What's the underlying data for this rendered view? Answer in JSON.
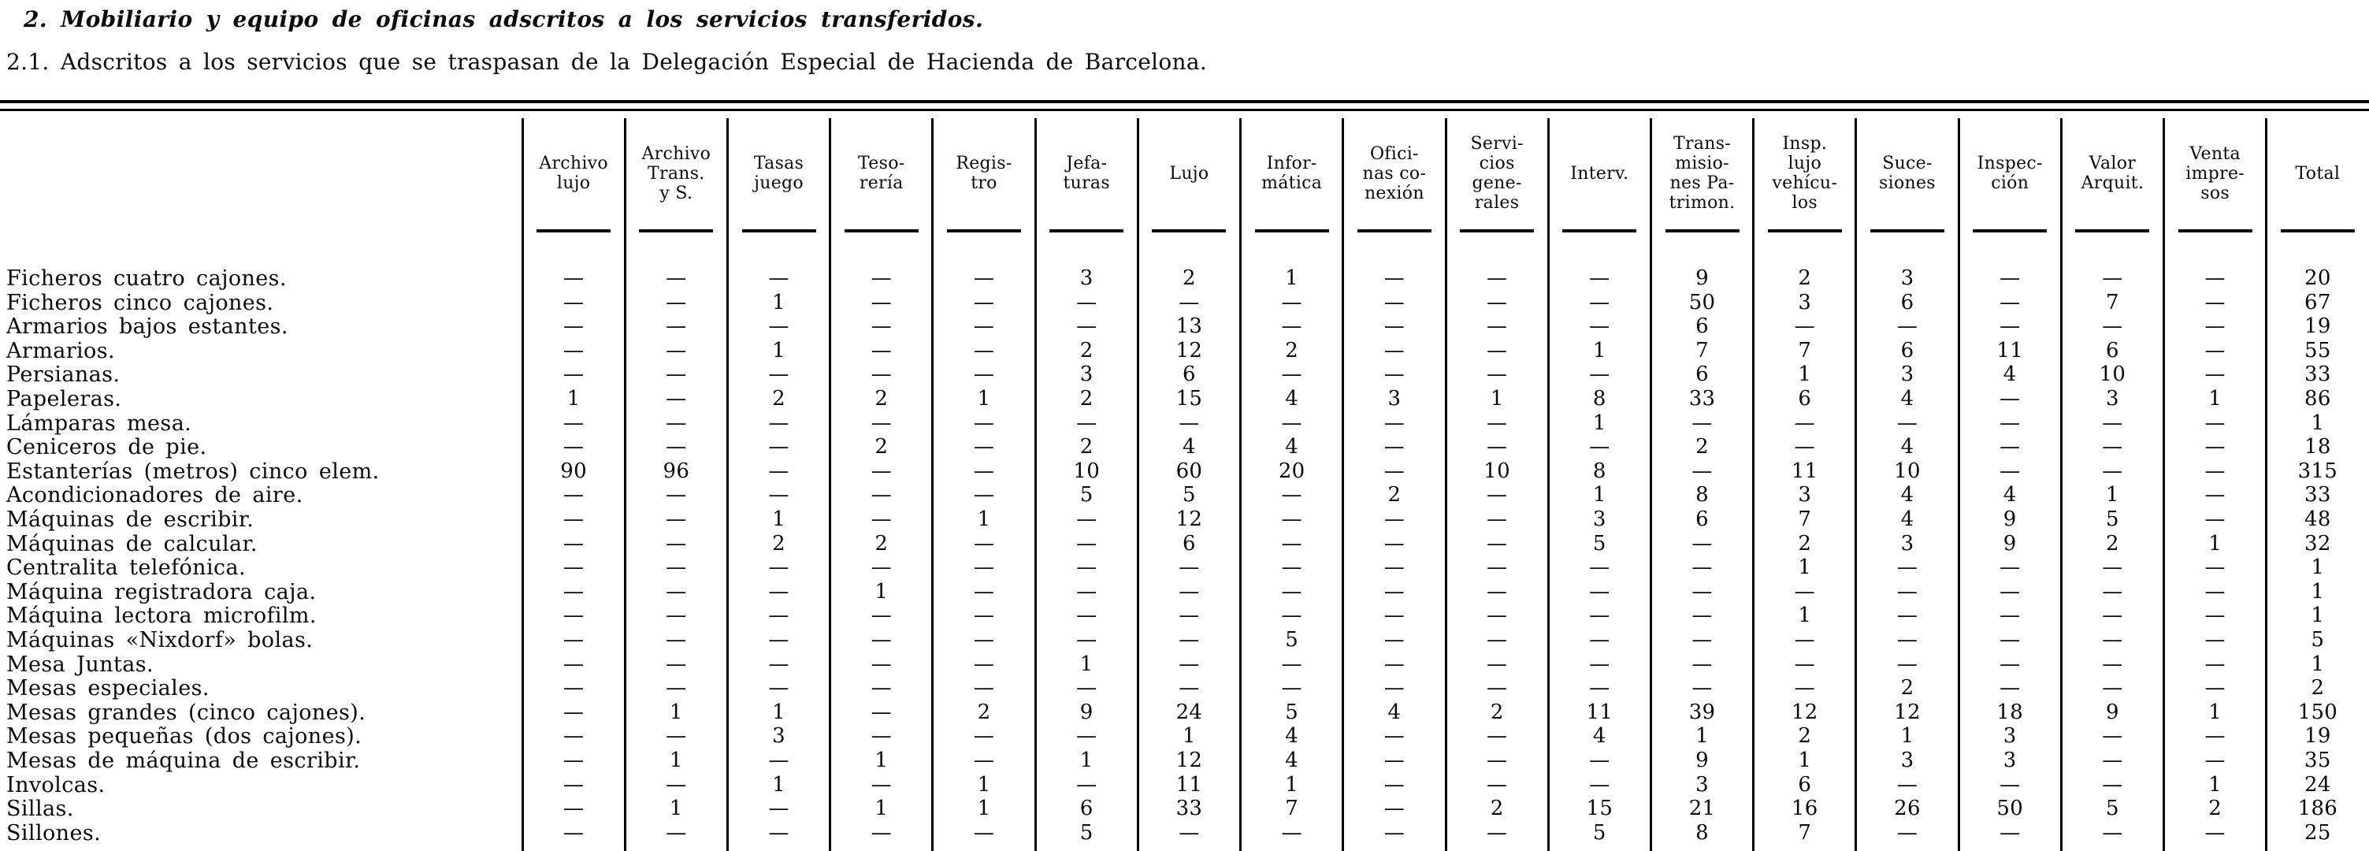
{
  "page": {
    "heading": "2.  Mobiliario y equipo de oficinas adscritos a los servicios transferidos.",
    "subheading": "2.1.  Adscritos a los servicios que se traspasan de la Delegación Especial de Hacienda de Barcelona."
  },
  "table": {
    "dash": "—",
    "columns": [
      {
        "id": "archivo-lujo",
        "label": "Archivo lujo",
        "lines": [
          "Archivo",
          "lujo"
        ]
      },
      {
        "id": "archivo-trans-y-s",
        "label": "Archivo Trans. y S.",
        "lines": [
          "Archivo",
          "Trans.",
          "y S."
        ]
      },
      {
        "id": "tasas-juego",
        "label": "Tasas juego",
        "lines": [
          "Tasas",
          "juego"
        ]
      },
      {
        "id": "tesoreria",
        "label": "Tesorería",
        "lines": [
          "Teso-",
          "rería"
        ]
      },
      {
        "id": "registro",
        "label": "Registro",
        "lines": [
          "Regis-",
          "tro"
        ]
      },
      {
        "id": "jefaturas",
        "label": "Jefaturas",
        "lines": [
          "Jefa-",
          "turas"
        ]
      },
      {
        "id": "lujo",
        "label": "Lujo",
        "lines": [
          "Lujo"
        ]
      },
      {
        "id": "informatica",
        "label": "Informática",
        "lines": [
          "Infor-",
          "mática"
        ]
      },
      {
        "id": "oficinas-conexion",
        "label": "Oficinas conexión",
        "lines": [
          "Ofici-",
          "nas co-",
          "nexión"
        ]
      },
      {
        "id": "servicios-generales",
        "label": "Servicios generales",
        "lines": [
          "Servi-",
          "cios",
          "gene-",
          "rales"
        ]
      },
      {
        "id": "interv",
        "label": "Interv.",
        "lines": [
          "Interv."
        ]
      },
      {
        "id": "transmisiones-patrimon",
        "label": "Transmisiones Patrimon.",
        "lines": [
          "Trans-",
          "misio-",
          "nes Pa-",
          "trimon."
        ]
      },
      {
        "id": "insp-lujo-vehiculos",
        "label": "Insp. lujo vehículos",
        "lines": [
          "Insp.",
          "lujo",
          "vehícu-",
          "los"
        ]
      },
      {
        "id": "sucesiones",
        "label": "Sucesiones",
        "lines": [
          "Suce-",
          "siones"
        ]
      },
      {
        "id": "inspeccion",
        "label": "Inspección",
        "lines": [
          "Inspec-",
          "ción"
        ]
      },
      {
        "id": "valor-arquit",
        "label": "Valor Arquit.",
        "lines": [
          "Valor",
          "Arquit."
        ]
      },
      {
        "id": "venta-impresos",
        "label": "Venta impresos",
        "lines": [
          "Venta",
          "impre-",
          "sos"
        ]
      },
      {
        "id": "total",
        "label": "Total",
        "lines": [
          "Total"
        ]
      }
    ],
    "rows": [
      {
        "label": "Ficheros cuatro cajones.",
        "values": [
          "—",
          "—",
          "—",
          "—",
          "—",
          "3",
          "2",
          "1",
          "—",
          "—",
          "—",
          "9",
          "2",
          "3",
          "—",
          "—",
          "—",
          "20"
        ]
      },
      {
        "label": "Ficheros cinco cajones.",
        "values": [
          "—",
          "—",
          "1",
          "—",
          "—",
          "—",
          "—",
          "—",
          "—",
          "—",
          "—",
          "50",
          "3",
          "6",
          "—",
          "7",
          "—",
          "67"
        ]
      },
      {
        "label": "Armarios bajos estantes.",
        "values": [
          "—",
          "—",
          "—",
          "—",
          "—",
          "—",
          "13",
          "—",
          "—",
          "—",
          "—",
          "6",
          "—",
          "—",
          "—",
          "—",
          "—",
          "19"
        ]
      },
      {
        "label": "Armarios.",
        "values": [
          "—",
          "—",
          "1",
          "—",
          "—",
          "2",
          "12",
          "2",
          "—",
          "—",
          "1",
          "7",
          "7",
          "6",
          "11",
          "6",
          "—",
          "55"
        ]
      },
      {
        "label": "Persianas.",
        "values": [
          "—",
          "—",
          "—",
          "—",
          "—",
          "3",
          "6",
          "—",
          "—",
          "—",
          "—",
          "6",
          "1",
          "3",
          "4",
          "10",
          "—",
          "33"
        ]
      },
      {
        "label": "Papeleras.",
        "values": [
          "1",
          "—",
          "2",
          "2",
          "1",
          "2",
          "15",
          "4",
          "3",
          "1",
          "8",
          "33",
          "6",
          "4",
          "—",
          "3",
          "1",
          "86"
        ]
      },
      {
        "label": "Lámparas mesa.",
        "values": [
          "—",
          "—",
          "—",
          "—",
          "—",
          "—",
          "—",
          "—",
          "—",
          "—",
          "1",
          "—",
          "—",
          "—",
          "—",
          "—",
          "—",
          "1"
        ]
      },
      {
        "label": "Ceniceros de pie.",
        "values": [
          "—",
          "—",
          "—",
          "2",
          "—",
          "2",
          "4",
          "4",
          "—",
          "—",
          "—",
          "2",
          "—",
          "4",
          "—",
          "—",
          "—",
          "18"
        ]
      },
      {
        "label": "Estanterías (metros) cinco elem.",
        "values": [
          "90",
          "96",
          "—",
          "—",
          "—",
          "10",
          "60",
          "20",
          "—",
          "10",
          "8",
          "—",
          "11",
          "10",
          "—",
          "—",
          "—",
          "315"
        ]
      },
      {
        "label": "Acondicionadores de aire.",
        "values": [
          "—",
          "—",
          "—",
          "—",
          "—",
          "5",
          "5",
          "—",
          "2",
          "—",
          "1",
          "8",
          "3",
          "4",
          "4",
          "1",
          "—",
          "33"
        ]
      },
      {
        "label": "Máquinas de escribir.",
        "values": [
          "—",
          "—",
          "1",
          "—",
          "1",
          "—",
          "12",
          "—",
          "—",
          "—",
          "3",
          "6",
          "7",
          "4",
          "9",
          "5",
          "—",
          "48"
        ]
      },
      {
        "label": "Máquinas de calcular.",
        "values": [
          "—",
          "—",
          "2",
          "2",
          "—",
          "—",
          "6",
          "—",
          "—",
          "—",
          "5",
          "—",
          "2",
          "3",
          "9",
          "2",
          "1",
          "32"
        ]
      },
      {
        "label": "Centralita telefónica.",
        "values": [
          "—",
          "—",
          "—",
          "—",
          "—",
          "—",
          "—",
          "—",
          "—",
          "—",
          "—",
          "—",
          "1",
          "—",
          "—",
          "—",
          "—",
          "1"
        ]
      },
      {
        "label": "Máquina registradora caja.",
        "values": [
          "—",
          "—",
          "—",
          "1",
          "—",
          "—",
          "—",
          "—",
          "—",
          "—",
          "—",
          "—",
          "—",
          "—",
          "—",
          "—",
          "—",
          "1"
        ]
      },
      {
        "label": "Máquina lectora microfilm.",
        "values": [
          "—",
          "—",
          "—",
          "—",
          "—",
          "—",
          "—",
          "—",
          "—",
          "—",
          "—",
          "—",
          "1",
          "—",
          "—",
          "—",
          "—",
          "1"
        ]
      },
      {
        "label": "Máquinas «Nixdorf» bolas.",
        "values": [
          "—",
          "—",
          "—",
          "—",
          "—",
          "—",
          "—",
          "5",
          "—",
          "—",
          "—",
          "—",
          "—",
          "—",
          "—",
          "—",
          "—",
          "5"
        ]
      },
      {
        "label": "Mesa Juntas.",
        "values": [
          "—",
          "—",
          "—",
          "—",
          "—",
          "1",
          "—",
          "—",
          "—",
          "—",
          "—",
          "—",
          "—",
          "—",
          "—",
          "—",
          "—",
          "1"
        ]
      },
      {
        "label": "Mesas especiales.",
        "values": [
          "—",
          "—",
          "—",
          "—",
          "—",
          "—",
          "—",
          "—",
          "—",
          "—",
          "—",
          "—",
          "—",
          "2",
          "—",
          "—",
          "—",
          "2"
        ]
      },
      {
        "label": "Mesas grandes (cinco cajones).",
        "values": [
          "—",
          "1",
          "1",
          "—",
          "2",
          "9",
          "24",
          "5",
          "4",
          "2",
          "11",
          "39",
          "12",
          "12",
          "18",
          "9",
          "1",
          "150"
        ]
      },
      {
        "label": "Mesas pequeñas (dos cajones).",
        "values": [
          "—",
          "—",
          "3",
          "—",
          "—",
          "—",
          "1",
          "4",
          "—",
          "—",
          "4",
          "1",
          "2",
          "1",
          "3",
          "—",
          "—",
          "19"
        ]
      },
      {
        "label": "Mesas de máquina de escribir.",
        "values": [
          "—",
          "1",
          "—",
          "1",
          "—",
          "1",
          "12",
          "4",
          "—",
          "—",
          "—",
          "9",
          "1",
          "3",
          "3",
          "—",
          "—",
          "35"
        ]
      },
      {
        "label": "Involcas.",
        "values": [
          "—",
          "—",
          "1",
          "—",
          "1",
          "—",
          "11",
          "1",
          "—",
          "—",
          "—",
          "3",
          "6",
          "—",
          "—",
          "—",
          "1",
          "24"
        ]
      },
      {
        "label": "Sillas.",
        "values": [
          "—",
          "1",
          "—",
          "1",
          "1",
          "6",
          "33",
          "7",
          "—",
          "2",
          "15",
          "21",
          "16",
          "26",
          "50",
          "5",
          "2",
          "186"
        ]
      },
      {
        "label": "Sillones.",
        "values": [
          "—",
          "—",
          "—",
          "—",
          "—",
          "5",
          "—",
          "—",
          "—",
          "—",
          "5",
          "8",
          "7",
          "—",
          "—",
          "—",
          "—",
          "25"
        ]
      }
    ]
  }
}
